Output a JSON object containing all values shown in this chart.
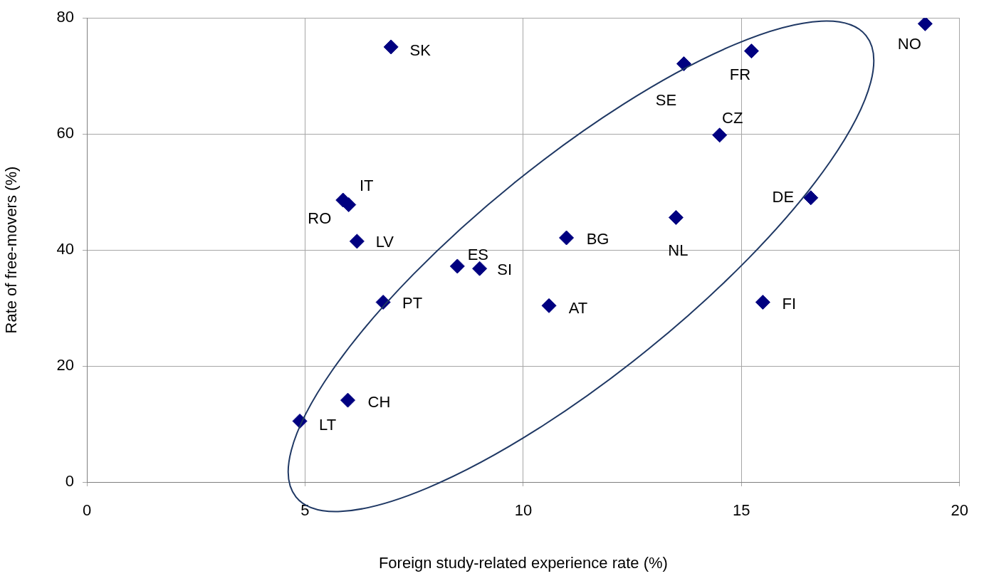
{
  "chart_data": {
    "type": "scatter",
    "xlabel": "Foreign study-related experience rate (%)",
    "ylabel": "Rate of free-movers (%)",
    "x": [
      6.97,
      5.87,
      6.0,
      6.19,
      8.49,
      9.0,
      6.79,
      10.59,
      10.99,
      13.5,
      13.68,
      15.23,
      14.5,
      16.59,
      15.49,
      19.21,
      5.98,
      4.88
    ],
    "series": [
      {
        "color": "#000080",
        "values": [
          75.0,
          48.6,
          47.8,
          41.5,
          37.2,
          36.8,
          31.0,
          30.4,
          42.1,
          45.6,
          72.1,
          74.3,
          59.8,
          49.0,
          31.0,
          79.0,
          14.1,
          10.5
        ]
      }
    ],
    "annotations": [
      {
        "text": "SK",
        "x": 6.97,
        "y": 75.0
      },
      {
        "text": "RO",
        "x": 5.87,
        "y": 48.6
      },
      {
        "text": "IT",
        "x": 6.0,
        "y": 47.8
      },
      {
        "text": "LV",
        "x": 6.19,
        "y": 41.5
      },
      {
        "text": "ES",
        "x": 8.49,
        "y": 37.2
      },
      {
        "text": "SI",
        "x": 9.0,
        "y": 36.8
      },
      {
        "text": "PT",
        "x": 6.79,
        "y": 31.0
      },
      {
        "text": "AT",
        "x": 10.59,
        "y": 30.4
      },
      {
        "text": "BG",
        "x": 10.99,
        "y": 42.1
      },
      {
        "text": "NL",
        "x": 13.5,
        "y": 45.6
      },
      {
        "text": "SE",
        "x": 13.68,
        "y": 72.1
      },
      {
        "text": "FR",
        "x": 15.23,
        "y": 74.3
      },
      {
        "text": "CZ",
        "x": 14.5,
        "y": 59.8
      },
      {
        "text": "DE",
        "x": 16.59,
        "y": 49.0
      },
      {
        "text": "FI",
        "x": 15.49,
        "y": 31.0
      },
      {
        "text": "NO",
        "x": 19.21,
        "y": 79.0
      },
      {
        "text": "CH",
        "x": 5.98,
        "y": 14.1
      },
      {
        "text": "LT",
        "x": 4.88,
        "y": 10.5
      }
    ],
    "marker": "diamond",
    "grid": true,
    "legend": false,
    "xlim": [
      0,
      20
    ],
    "xticks": [
      0,
      5,
      10,
      15,
      20
    ],
    "ylim": [
      0,
      80
    ],
    "yticks": [
      0,
      20,
      40,
      60,
      80
    ]
  }
}
